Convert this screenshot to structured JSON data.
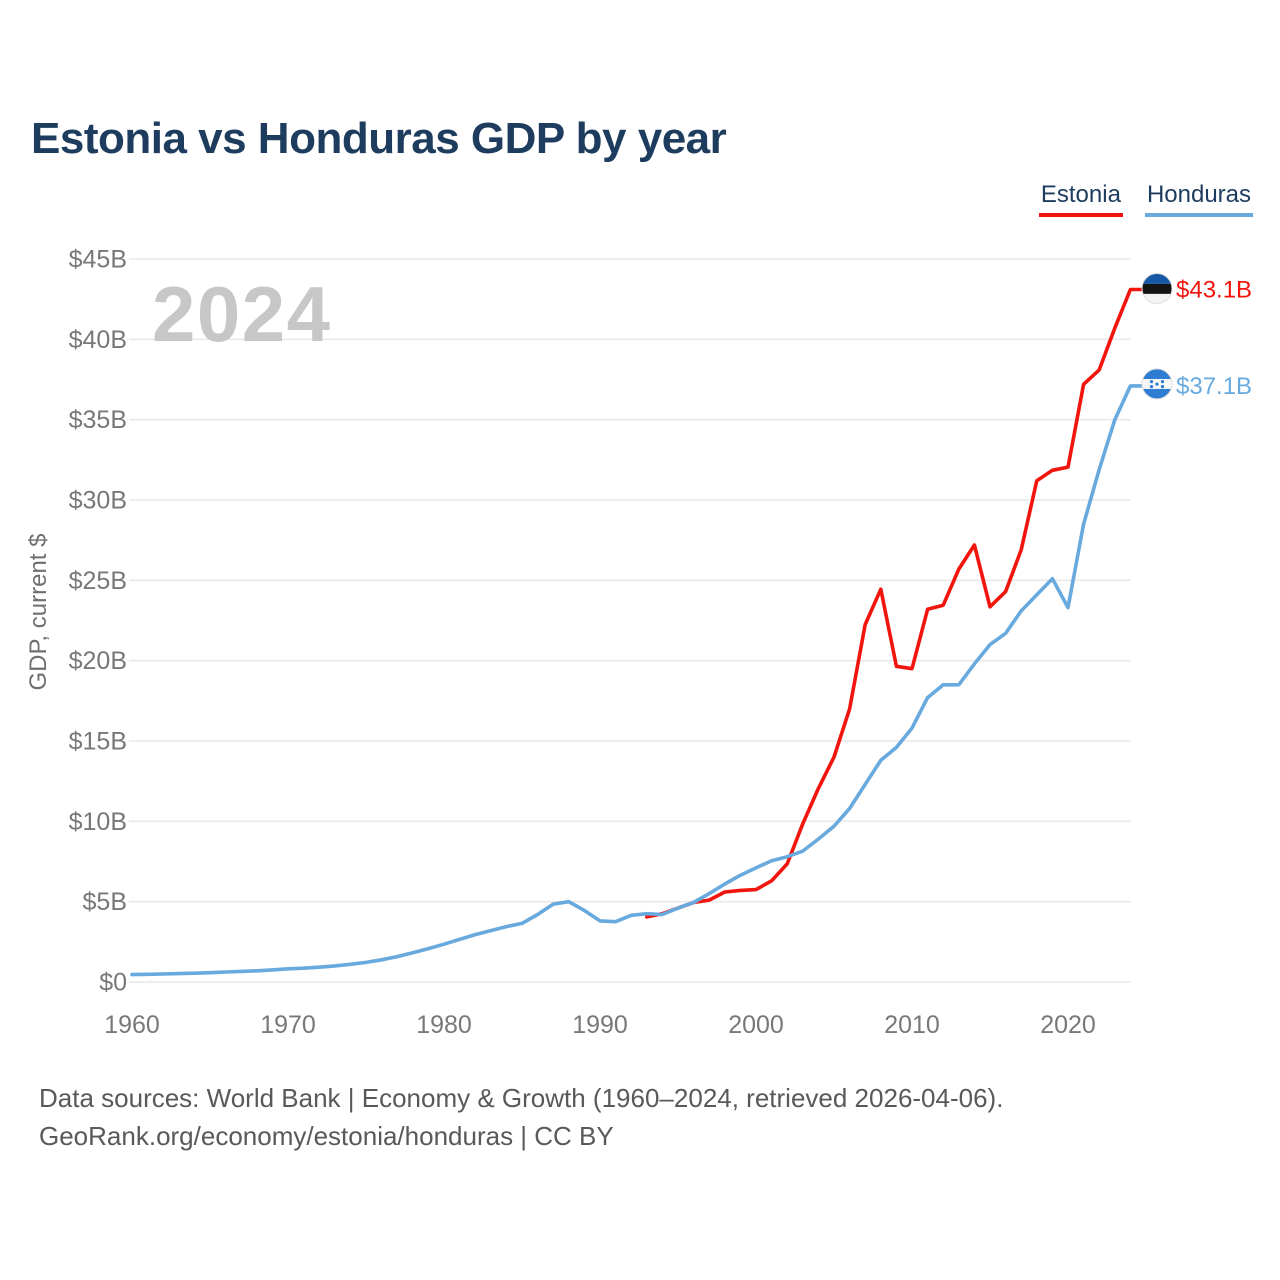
{
  "title": "Estonia vs Honduras GDP by year",
  "watermark": "2024",
  "legend": [
    {
      "label": "Estonia",
      "color": "#f2150d"
    },
    {
      "label": "Honduras",
      "color": "#68a9de"
    }
  ],
  "y_axis": {
    "title": "GDP, current $",
    "tick_labels": [
      "$45B",
      "$40B",
      "$35B",
      "$30B",
      "$25B",
      "$20B",
      "$15B",
      "$10B",
      "$5B",
      "$0"
    ],
    "tick_values": [
      45,
      40,
      35,
      30,
      25,
      20,
      15,
      10,
      5,
      0
    ]
  },
  "x_axis": {
    "tick_labels": [
      "1960",
      "1970",
      "1980",
      "1990",
      "2000",
      "2010",
      "2020"
    ],
    "tick_values": [
      1960,
      1970,
      1980,
      1990,
      2000,
      2010,
      2020
    ]
  },
  "end_labels": [
    {
      "series": "Estonia",
      "text": "$43.1B",
      "color": "#f2150d"
    },
    {
      "series": "Honduras",
      "text": "$37.1B",
      "color": "#68a9de"
    }
  ],
  "flags": {
    "estonia": {
      "blue": "#1759a6",
      "black": "#141414",
      "white": "#f4f4f4"
    },
    "honduras": {
      "blue": "#2e7dd2",
      "white": "#f8f8f8"
    }
  },
  "footer": {
    "line1": "Data sources: World Bank | Economy & Growth (1960–2024, retrieved 2026-04-06).",
    "line2": "GeoRank.org/economy/estonia/honduras | CC BY"
  },
  "chart_data": {
    "type": "line",
    "title": "Estonia vs Honduras GDP by year",
    "xlabel": "",
    "ylabel": "GDP, current $",
    "ylim": [
      0,
      45
    ],
    "x_range": [
      1960,
      2024
    ],
    "grid": "horizontal",
    "legend_position": "top-right",
    "units": "billions of current US$",
    "series": [
      {
        "name": "Estonia",
        "color": "#f2150d",
        "start_year": 1993,
        "end_value_label": "$43.1B",
        "values": [
          4.05,
          4.25,
          4.6,
          4.95,
          5.1,
          5.6,
          5.7,
          5.75,
          6.3,
          7.35,
          9.85,
          12.05,
          14.0,
          17.0,
          22.25,
          24.45,
          19.65,
          19.5,
          23.2,
          23.45,
          25.7,
          27.2,
          23.35,
          24.3,
          26.9,
          31.2,
          31.85,
          32.05,
          37.2,
          38.1,
          40.7,
          43.1
        ]
      },
      {
        "name": "Honduras",
        "color": "#68a9de",
        "start_year": 1960,
        "end_value_label": "$37.1B",
        "values": [
          0.46,
          0.48,
          0.5,
          0.52,
          0.55,
          0.58,
          0.62,
          0.66,
          0.7,
          0.75,
          0.82,
          0.86,
          0.92,
          1.0,
          1.1,
          1.22,
          1.38,
          1.58,
          1.82,
          2.08,
          2.35,
          2.65,
          2.95,
          3.2,
          3.45,
          3.65,
          4.2,
          4.85,
          5.0,
          4.45,
          3.8,
          3.75,
          4.15,
          4.25,
          4.2,
          4.6,
          4.95,
          5.5,
          6.1,
          6.65,
          7.1,
          7.55,
          7.8,
          8.15,
          8.9,
          9.7,
          10.8,
          12.3,
          13.8,
          14.6,
          15.8,
          17.7,
          18.5,
          18.5,
          19.8,
          21.0,
          21.7,
          23.1,
          24.1,
          25.1,
          23.3,
          28.5,
          31.9,
          35.0,
          37.1
        ]
      }
    ]
  }
}
